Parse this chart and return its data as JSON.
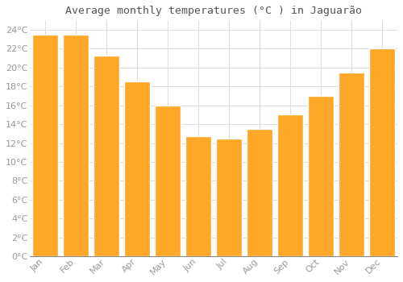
{
  "title": "Average monthly temperatures (°C ) in Jaguarão",
  "months": [
    "Jan",
    "Feb",
    "Mar",
    "Apr",
    "May",
    "Jun",
    "Jul",
    "Aug",
    "Sep",
    "Oct",
    "Nov",
    "Dec"
  ],
  "values": [
    23.5,
    23.5,
    21.3,
    18.5,
    16.0,
    12.7,
    12.5,
    13.5,
    15.0,
    17.0,
    19.5,
    22.0
  ],
  "bar_color": "#FFA726",
  "bar_edge_color": "#FFFFFF",
  "background_color": "#FFFFFF",
  "grid_color": "#DDDDDD",
  "text_color": "#999999",
  "title_color": "#555555",
  "ylim": [
    0,
    25
  ],
  "ytick_step": 2,
  "title_fontsize": 9.5,
  "tick_fontsize": 8
}
